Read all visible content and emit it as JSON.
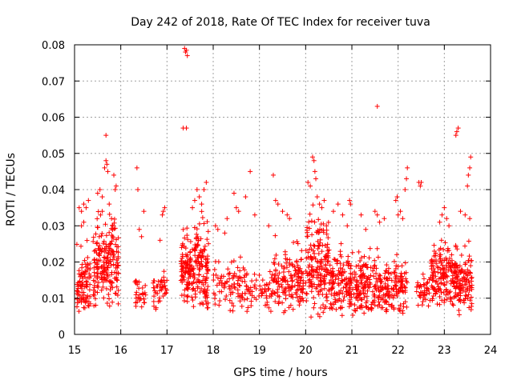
{
  "chart_data": {
    "type": "scatter",
    "title": "Day 242 of 2018, Rate Of TEC Index for receiver tuva",
    "xlabel": "GPS time / hours",
    "ylabel": "ROTI / TECUs",
    "xlim": [
      15,
      24
    ],
    "ylim": [
      0,
      0.08
    ],
    "x_ticks": [
      "15",
      "16",
      "17",
      "18",
      "19",
      "20",
      "21",
      "22",
      "23",
      "24"
    ],
    "y_ticks": [
      "0",
      "0.01",
      "0.02",
      "0.03",
      "0.04",
      "0.05",
      "0.06",
      "0.07",
      "0.08"
    ],
    "grid": true,
    "marker": "plus",
    "color": "#ff0000",
    "clusters": [
      {
        "x_range": [
          15.05,
          15.35
        ],
        "y_range": [
          0.005,
          0.028
        ],
        "count": 90
      },
      {
        "x_range": [
          15.4,
          15.95
        ],
        "y_range": [
          0.005,
          0.04
        ],
        "count": 200
      },
      {
        "x_range": [
          16.3,
          16.55
        ],
        "y_range": [
          0.006,
          0.02
        ],
        "count": 30
      },
      {
        "x_range": [
          16.7,
          17.0
        ],
        "y_range": [
          0.006,
          0.02
        ],
        "count": 40
      },
      {
        "x_range": [
          17.3,
          17.9
        ],
        "y_range": [
          0.006,
          0.035
        ],
        "count": 230
      },
      {
        "x_range": [
          18.0,
          18.7
        ],
        "y_range": [
          0.006,
          0.025
        ],
        "count": 90
      },
      {
        "x_range": [
          18.7,
          19.3
        ],
        "y_range": [
          0.005,
          0.022
        ],
        "count": 60
      },
      {
        "x_range": [
          19.3,
          19.95
        ],
        "y_range": [
          0.005,
          0.03
        ],
        "count": 150
      },
      {
        "x_range": [
          20.0,
          20.5
        ],
        "y_range": [
          0.004,
          0.04
        ],
        "count": 170
      },
      {
        "x_range": [
          20.5,
          21.0
        ],
        "y_range": [
          0.005,
          0.028
        ],
        "count": 140
      },
      {
        "x_range": [
          21.0,
          21.6
        ],
        "y_range": [
          0.004,
          0.028
        ],
        "count": 150
      },
      {
        "x_range": [
          21.6,
          22.2
        ],
        "y_range": [
          0.005,
          0.024
        ],
        "count": 140
      },
      {
        "x_range": [
          22.4,
          22.7
        ],
        "y_range": [
          0.006,
          0.02
        ],
        "count": 40
      },
      {
        "x_range": [
          22.7,
          23.3
        ],
        "y_range": [
          0.006,
          0.03
        ],
        "count": 190
      },
      {
        "x_range": [
          23.3,
          23.6
        ],
        "y_range": [
          0.004,
          0.028
        ],
        "count": 90
      }
    ],
    "points": [
      [
        15.1,
        0.035
      ],
      [
        15.15,
        0.034
      ],
      [
        15.2,
        0.036
      ],
      [
        15.25,
        0.035
      ],
      [
        15.3,
        0.037
      ],
      [
        15.15,
        0.03
      ],
      [
        15.2,
        0.031
      ],
      [
        15.5,
        0.039
      ],
      [
        15.55,
        0.04
      ],
      [
        15.6,
        0.038
      ],
      [
        15.65,
        0.046
      ],
      [
        15.68,
        0.048
      ],
      [
        15.7,
        0.047
      ],
      [
        15.72,
        0.045
      ],
      [
        15.68,
        0.055
      ],
      [
        15.85,
        0.044
      ],
      [
        15.88,
        0.04
      ],
      [
        15.9,
        0.041
      ],
      [
        15.6,
        0.034
      ],
      [
        15.75,
        0.036
      ],
      [
        15.8,
        0.032
      ],
      [
        16.35,
        0.046
      ],
      [
        16.37,
        0.04
      ],
      [
        16.5,
        0.034
      ],
      [
        16.4,
        0.029
      ],
      [
        16.45,
        0.027
      ],
      [
        16.9,
        0.033
      ],
      [
        16.92,
        0.034
      ],
      [
        16.95,
        0.035
      ],
      [
        16.85,
        0.026
      ],
      [
        17.35,
        0.057
      ],
      [
        17.42,
        0.057
      ],
      [
        17.38,
        0.079
      ],
      [
        17.4,
        0.078
      ],
      [
        17.42,
        0.0785
      ],
      [
        17.44,
        0.077
      ],
      [
        17.6,
        0.037
      ],
      [
        17.65,
        0.04
      ],
      [
        17.7,
        0.038
      ],
      [
        17.75,
        0.036
      ],
      [
        17.8,
        0.04
      ],
      [
        17.85,
        0.042
      ],
      [
        17.55,
        0.035
      ],
      [
        18.05,
        0.03
      ],
      [
        18.1,
        0.029
      ],
      [
        18.25,
        0.028
      ],
      [
        18.45,
        0.039
      ],
      [
        18.5,
        0.035
      ],
      [
        18.55,
        0.034
      ],
      [
        18.7,
        0.038
      ],
      [
        18.3,
        0.032
      ],
      [
        18.8,
        0.045
      ],
      [
        18.9,
        0.033
      ],
      [
        19.3,
        0.044
      ],
      [
        19.35,
        0.037
      ],
      [
        19.4,
        0.036
      ],
      [
        19.2,
        0.03
      ],
      [
        19.5,
        0.034
      ],
      [
        19.6,
        0.033
      ],
      [
        19.65,
        0.032
      ],
      [
        20.05,
        0.042
      ],
      [
        20.1,
        0.041
      ],
      [
        20.15,
        0.049
      ],
      [
        20.18,
        0.048
      ],
      [
        20.2,
        0.045
      ],
      [
        20.22,
        0.043
      ],
      [
        20.25,
        0.038
      ],
      [
        20.3,
        0.036
      ],
      [
        20.35,
        0.035
      ],
      [
        20.4,
        0.037
      ],
      [
        20.45,
        0.03
      ],
      [
        20.6,
        0.034
      ],
      [
        20.7,
        0.036
      ],
      [
        20.8,
        0.033
      ],
      [
        20.9,
        0.03
      ],
      [
        20.95,
        0.037
      ],
      [
        20.97,
        0.036
      ],
      [
        21.2,
        0.033
      ],
      [
        21.3,
        0.029
      ],
      [
        21.5,
        0.034
      ],
      [
        21.55,
        0.033
      ],
      [
        21.6,
        0.031
      ],
      [
        21.55,
        0.063
      ],
      [
        21.7,
        0.032
      ],
      [
        21.95,
        0.037
      ],
      [
        21.98,
        0.038
      ],
      [
        22.0,
        0.033
      ],
      [
        22.05,
        0.034
      ],
      [
        22.1,
        0.032
      ],
      [
        22.15,
        0.04
      ],
      [
        22.18,
        0.043
      ],
      [
        22.2,
        0.046
      ],
      [
        22.45,
        0.042
      ],
      [
        22.48,
        0.041
      ],
      [
        22.5,
        0.042
      ],
      [
        22.9,
        0.031
      ],
      [
        22.95,
        0.033
      ],
      [
        23.0,
        0.035
      ],
      [
        23.05,
        0.032
      ],
      [
        23.1,
        0.03
      ],
      [
        23.25,
        0.055
      ],
      [
        23.27,
        0.056
      ],
      [
        23.3,
        0.057
      ],
      [
        23.35,
        0.034
      ],
      [
        23.45,
        0.033
      ],
      [
        23.5,
        0.041
      ],
      [
        23.52,
        0.044
      ],
      [
        23.55,
        0.046
      ],
      [
        23.57,
        0.049
      ],
      [
        23.55,
        0.032
      ]
    ]
  }
}
